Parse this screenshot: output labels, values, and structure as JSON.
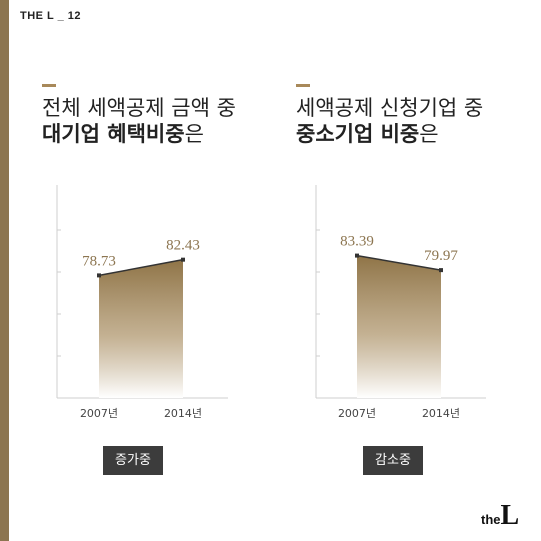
{
  "brand": {
    "top": "THE L _ 12",
    "bottom_small": "the",
    "bottom_big": "L"
  },
  "left_panel": {
    "heading_line1": "전체 세액공제 금액 중",
    "heading_line2_bold": "대기업 혜택비중",
    "heading_line2_rest": "은",
    "badge": "증가중"
  },
  "right_panel": {
    "heading_line1": "세액공제 신청기업 중",
    "heading_line2_bold": "중소기업 비중",
    "heading_line2_rest": "은",
    "badge": "감소중"
  },
  "colors": {
    "accent": "#8c7550",
    "area_top": "#8f7447",
    "line": "#333333",
    "badge_bg": "#3c3c3c"
  },
  "chart_data": [
    {
      "type": "area",
      "categories": [
        "2007년",
        "2014년"
      ],
      "values": [
        78.73,
        82.43
      ],
      "value_labels": [
        "78.73",
        "82.43"
      ],
      "trend": "증가중"
    },
    {
      "type": "area",
      "categories": [
        "2007년",
        "2014년"
      ],
      "values": [
        83.39,
        79.97
      ],
      "value_labels": [
        "83.39",
        "79.97"
      ],
      "trend": "감소중"
    }
  ]
}
